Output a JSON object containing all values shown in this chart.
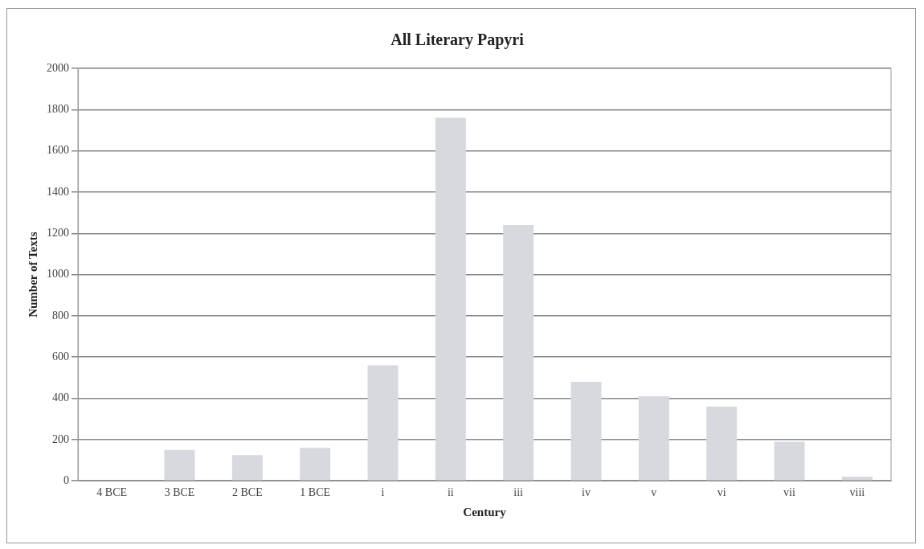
{
  "chart_data": {
    "type": "bar",
    "title": "All Literary Papyri",
    "xlabel": "Century",
    "ylabel": "Number of Texts",
    "categories": [
      "4 BCE",
      "3 BCE",
      "2 BCE",
      "1 BCE",
      "i",
      "ii",
      "iii",
      "iv",
      "v",
      "vi",
      "vii",
      "viii"
    ],
    "values": [
      0,
      150,
      125,
      160,
      560,
      1760,
      1240,
      480,
      410,
      360,
      190,
      20
    ],
    "color": "#d7d9de",
    "ylim": [
      0,
      2000
    ],
    "yticks": [
      0,
      200,
      400,
      600,
      800,
      1000,
      1200,
      1400,
      1600,
      1800,
      2000
    ],
    "grid": "y",
    "legend": false
  }
}
